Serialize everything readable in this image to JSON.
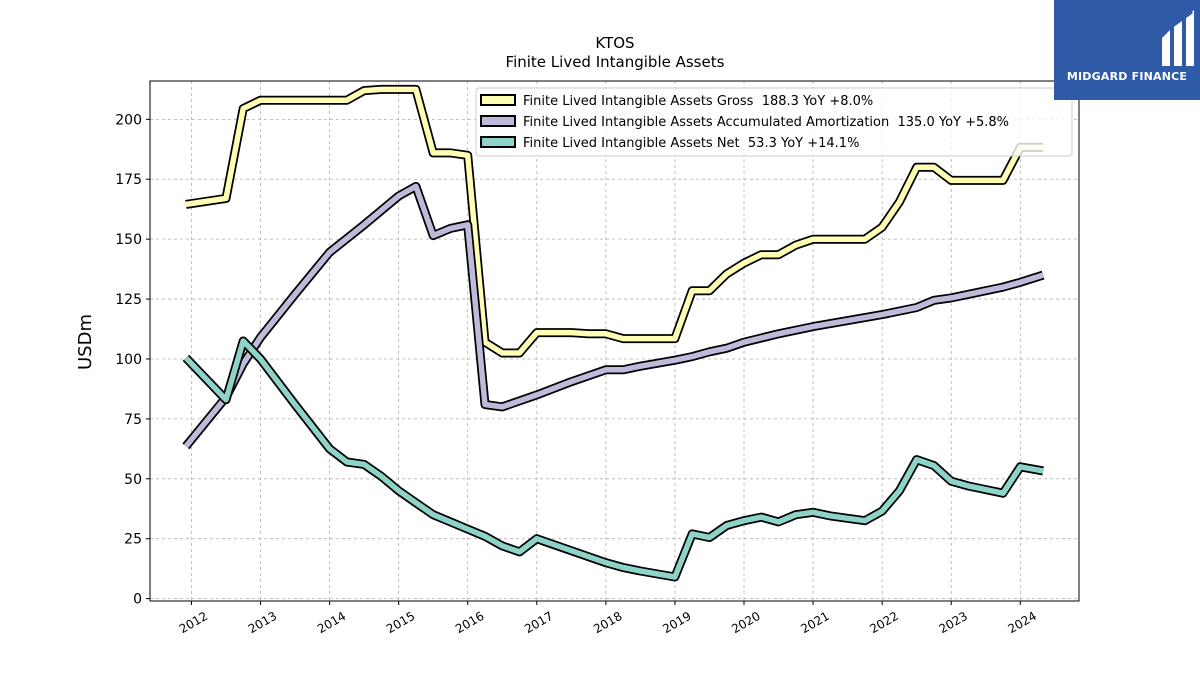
{
  "chart_data": {
    "type": "line",
    "title": "KTOS",
    "subtitle": "Finite Lived Intangible Assets",
    "ylabel": "USDm",
    "xlabel": "",
    "ylim": [
      -1,
      216
    ],
    "xlim": [
      2011.4,
      2024.85
    ],
    "yticks": [
      0,
      25,
      50,
      75,
      100,
      125,
      150,
      175,
      200
    ],
    "xticks": [
      "2012",
      "2013",
      "2014",
      "2015",
      "2016",
      "2017",
      "2018",
      "2019",
      "2020",
      "2021",
      "2022",
      "2023",
      "2024"
    ],
    "grid": true,
    "legend_position": "top-right",
    "series": [
      {
        "name": "Finite Lived Intangible Assets Gross  188.3 YoY +8.0%",
        "color": "#ffffb3",
        "points": [
          [
            2011.92,
            164.5
          ],
          [
            2012.5,
            167
          ],
          [
            2012.75,
            204.5
          ],
          [
            2013.0,
            208
          ],
          [
            2013.25,
            208
          ],
          [
            2013.5,
            208
          ],
          [
            2013.75,
            208
          ],
          [
            2014.0,
            208
          ],
          [
            2014.25,
            208
          ],
          [
            2014.5,
            212
          ],
          [
            2014.75,
            212.5
          ],
          [
            2015.0,
            212.5
          ],
          [
            2015.25,
            212.5
          ],
          [
            2015.5,
            186
          ],
          [
            2015.75,
            186
          ],
          [
            2016.0,
            185
          ],
          [
            2016.25,
            107
          ],
          [
            2016.5,
            102.5
          ],
          [
            2016.75,
            102.5
          ],
          [
            2017.0,
            111
          ],
          [
            2017.25,
            111
          ],
          [
            2017.5,
            111
          ],
          [
            2017.75,
            110.5
          ],
          [
            2018.0,
            110.5
          ],
          [
            2018.25,
            108.5
          ],
          [
            2018.5,
            108.5
          ],
          [
            2018.75,
            108.5
          ],
          [
            2019.0,
            108.5
          ],
          [
            2019.25,
            128.5
          ],
          [
            2019.5,
            128.5
          ],
          [
            2019.75,
            135.5
          ],
          [
            2020.0,
            140
          ],
          [
            2020.25,
            143.5
          ],
          [
            2020.5,
            143.5
          ],
          [
            2020.75,
            147.5
          ],
          [
            2021.0,
            150
          ],
          [
            2021.25,
            150
          ],
          [
            2021.5,
            150
          ],
          [
            2021.75,
            150
          ],
          [
            2022.0,
            155
          ],
          [
            2022.25,
            165.5
          ],
          [
            2022.5,
            180
          ],
          [
            2022.75,
            180
          ],
          [
            2023.0,
            174.5
          ],
          [
            2023.25,
            174.5
          ],
          [
            2023.5,
            174.5
          ],
          [
            2023.75,
            174.5
          ],
          [
            2024.0,
            188.3
          ],
          [
            2024.33,
            188.3
          ]
        ]
      },
      {
        "name": "Finite Lived Intangible Assets Accumulated Amortization  135.0 YoY +5.8%",
        "color": "#bebada",
        "points": [
          [
            2011.92,
            63.5
          ],
          [
            2012.5,
            84
          ],
          [
            2012.75,
            98
          ],
          [
            2013.0,
            109
          ],
          [
            2013.5,
            127
          ],
          [
            2014.0,
            144.5
          ],
          [
            2014.5,
            156
          ],
          [
            2015.0,
            168
          ],
          [
            2015.25,
            172
          ],
          [
            2015.5,
            151.5
          ],
          [
            2015.75,
            154.5
          ],
          [
            2016.0,
            156
          ],
          [
            2016.25,
            81
          ],
          [
            2016.5,
            80
          ],
          [
            2017.0,
            85
          ],
          [
            2017.5,
            90.5
          ],
          [
            2018.0,
            95.5
          ],
          [
            2018.25,
            95.5
          ],
          [
            2018.5,
            97
          ],
          [
            2019.0,
            99.5
          ],
          [
            2019.25,
            101
          ],
          [
            2019.5,
            103
          ],
          [
            2019.75,
            104.5
          ],
          [
            2020.0,
            107
          ],
          [
            2020.5,
            110.5
          ],
          [
            2021.0,
            113.5
          ],
          [
            2021.5,
            116
          ],
          [
            2022.0,
            118.5
          ],
          [
            2022.5,
            121.5
          ],
          [
            2022.75,
            124.5
          ],
          [
            2023.0,
            125.5
          ],
          [
            2023.25,
            127
          ],
          [
            2023.75,
            130
          ],
          [
            2024.0,
            132
          ],
          [
            2024.33,
            135
          ]
        ]
      },
      {
        "name": "Finite Lived Intangible Assets Net  53.3 YoY +14.1%",
        "color": "#8dd3c7",
        "points": [
          [
            2011.92,
            100.5
          ],
          [
            2012.5,
            83
          ],
          [
            2012.75,
            107.5
          ],
          [
            2013.0,
            100
          ],
          [
            2013.5,
            81
          ],
          [
            2014.0,
            62.5
          ],
          [
            2014.25,
            57
          ],
          [
            2014.5,
            56
          ],
          [
            2014.75,
            51
          ],
          [
            2015.0,
            45
          ],
          [
            2015.25,
            40
          ],
          [
            2015.5,
            35
          ],
          [
            2015.75,
            32
          ],
          [
            2016.0,
            29
          ],
          [
            2016.25,
            26
          ],
          [
            2016.5,
            22
          ],
          [
            2016.75,
            19.5
          ],
          [
            2017.0,
            25
          ],
          [
            2017.5,
            20
          ],
          [
            2018.0,
            15
          ],
          [
            2018.25,
            13
          ],
          [
            2018.5,
            11.5
          ],
          [
            2019.0,
            9
          ],
          [
            2019.25,
            27
          ],
          [
            2019.5,
            25.5
          ],
          [
            2019.75,
            30.5
          ],
          [
            2020.0,
            32.5
          ],
          [
            2020.25,
            34
          ],
          [
            2020.5,
            32
          ],
          [
            2020.75,
            35
          ],
          [
            2021.0,
            36
          ],
          [
            2021.25,
            34.5
          ],
          [
            2021.5,
            33.5
          ],
          [
            2021.75,
            32.5
          ],
          [
            2022.0,
            36.5
          ],
          [
            2022.25,
            45
          ],
          [
            2022.5,
            58
          ],
          [
            2022.75,
            55.5
          ],
          [
            2023.0,
            49
          ],
          [
            2023.25,
            47
          ],
          [
            2023.5,
            45.5
          ],
          [
            2023.75,
            44
          ],
          [
            2024.0,
            55
          ],
          [
            2024.33,
            53.3
          ]
        ]
      }
    ]
  },
  "branding": {
    "logo_text": "MIDGARD FINANCE",
    "logo_color": "#2f5aa8"
  }
}
